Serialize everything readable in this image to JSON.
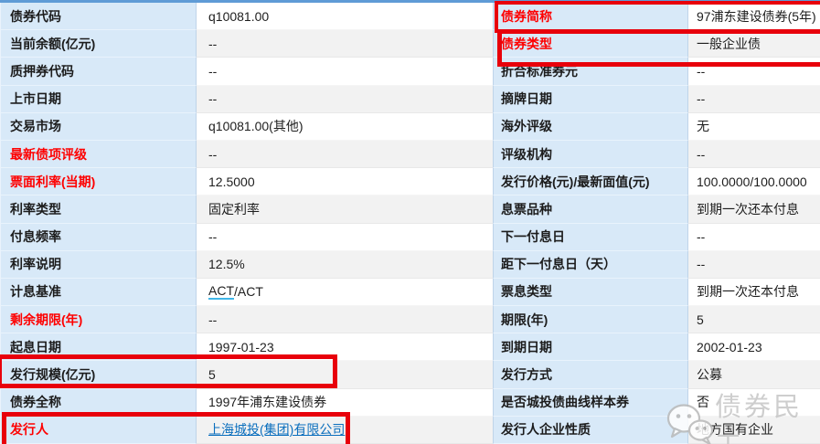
{
  "colors": {
    "top_strip": "#5f9bd6",
    "label_bg": "#d8e9f8",
    "row_alt": "#f2f2f2",
    "red_label": "#fe0000",
    "link": "#0a6ebd",
    "annotation_red": "#e8000b",
    "act_underline": "#3fb6e8",
    "watermark_gray": "#c6c6c6"
  },
  "left_table": {
    "rows": [
      {
        "key": "bond-code",
        "label": "债券代码",
        "value": "q10081.00"
      },
      {
        "key": "current-balance",
        "label": "当前余额(亿元)",
        "value": "--"
      },
      {
        "key": "pledge-code",
        "label": "质押券代码",
        "value": "--"
      },
      {
        "key": "listing-date",
        "label": "上市日期",
        "value": "--"
      },
      {
        "key": "trading-market",
        "label": "交易市场",
        "value": "q10081.00(其他)"
      },
      {
        "key": "latest-bond-rating",
        "label": "最新债项评级",
        "value": "--",
        "label_red": true
      },
      {
        "key": "coupon-rate-current",
        "label": "票面利率(当期)",
        "value": "12.5000",
        "label_red": true
      },
      {
        "key": "rate-type",
        "label": "利率类型",
        "value": "固定利率"
      },
      {
        "key": "payment-frequency",
        "label": "付息频率",
        "value": "--"
      },
      {
        "key": "rate-description",
        "label": "利率说明",
        "value": "12.5%"
      },
      {
        "key": "accrual-basis",
        "label": "计息基准",
        "value": "ACT/ACT",
        "underline_prefix": "ACT"
      },
      {
        "key": "remaining-maturity",
        "label": "剩余期限(年)",
        "value": "--",
        "label_red": true
      },
      {
        "key": "value-date",
        "label": "起息日期",
        "value": "1997-01-23"
      },
      {
        "key": "issue-size",
        "label": "发行规模(亿元)",
        "value": "5"
      },
      {
        "key": "bond-full-name",
        "label": "债券全称",
        "value": "1997年浦东建设债券"
      },
      {
        "key": "issuer",
        "label": "发行人",
        "value": "上海城投(集团)有限公司",
        "label_red": true,
        "link": true
      }
    ]
  },
  "right_table": {
    "rows": [
      {
        "key": "bond-short-name",
        "label": "债券简称",
        "value": "97浦东建设债券(5年)",
        "label_red": true
      },
      {
        "key": "bond-type",
        "label": "债券类型",
        "value": "一般企业债",
        "label_red": true
      },
      {
        "key": "standard-bond-conversion",
        "label": "折合标准券元",
        "value": "--"
      },
      {
        "key": "delisting-date",
        "label": "摘牌日期",
        "value": "--"
      },
      {
        "key": "overseas-rating",
        "label": "海外评级",
        "value": "无"
      },
      {
        "key": "rating-agency",
        "label": "评级机构",
        "value": "--"
      },
      {
        "key": "issue-price-face-value",
        "label": "发行价格(元)/最新面值(元)",
        "value": "100.0000/100.0000"
      },
      {
        "key": "coupon-variety",
        "label": "息票品种",
        "value": "到期一次还本付息"
      },
      {
        "key": "next-payment-date",
        "label": "下一付息日",
        "value": "--"
      },
      {
        "key": "days-to-next-payment",
        "label": "距下一付息日（天）",
        "value": "--"
      },
      {
        "key": "coupon-type",
        "label": "票息类型",
        "value": "到期一次还本付息"
      },
      {
        "key": "maturity-years",
        "label": "期限(年)",
        "value": "5"
      },
      {
        "key": "maturity-date",
        "label": "到期日期",
        "value": "2002-01-23"
      },
      {
        "key": "issue-method",
        "label": "发行方式",
        "value": "公募"
      },
      {
        "key": "is-urban-curve-sample",
        "label": "是否城投债曲线样本券",
        "value": "否"
      },
      {
        "key": "issuer-enterprise-nature",
        "label": "发行人企业性质",
        "value": "地方国有企业"
      }
    ]
  },
  "annotations": [
    {
      "key": "issue-size-highlight",
      "target": "发行规模(亿元) 5"
    },
    {
      "key": "issuer-highlight",
      "target": "发行人 上海城投(集团)有限公司"
    },
    {
      "key": "bond-short-name-highlight",
      "target": "债券简称 97浦东建设债券(5年)"
    },
    {
      "key": "bond-type-highlight",
      "target": "债券类型 一般企业债"
    }
  ],
  "watermark": {
    "text": "债券民工",
    "icon": "wechat-chat-bubbles-icon"
  }
}
